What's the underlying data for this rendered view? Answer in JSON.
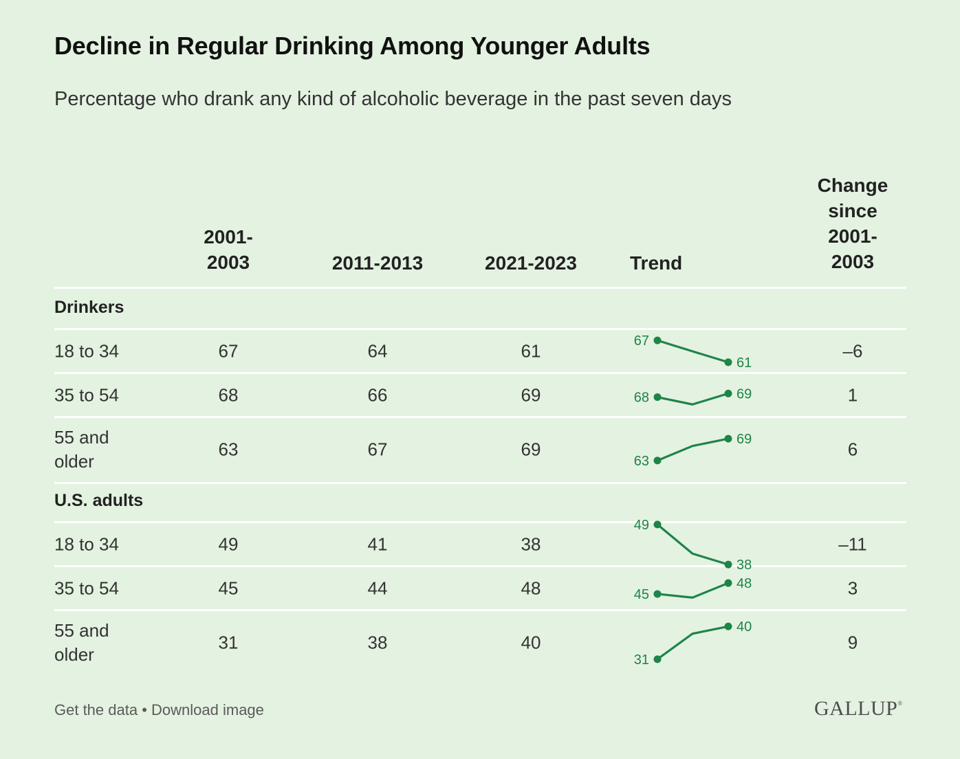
{
  "title": "Decline in Regular Drinking Among Younger Adults",
  "subtitle": "Percentage who drank any kind of alcoholic beverage in the past seven days",
  "headers": {
    "col1_line1": "2001-",
    "col1_line2": "2003",
    "col2": "2011-2013",
    "col3": "2021-2023",
    "trend": "Trend",
    "change_line1": "Change",
    "change_line2": "since",
    "change_line3": "2001-",
    "change_line4": "2003"
  },
  "colors": {
    "background": "#e4f2e1",
    "trend_line": "#1e8449",
    "rule": "#ffffff"
  },
  "chart_data": {
    "type": "table",
    "title": "Decline in Regular Drinking Among Younger Adults",
    "subtitle": "Percentage who drank any kind of alcoholic beverage in the past seven days",
    "columns": [
      "2001-2003",
      "2011-2013",
      "2021-2023"
    ],
    "groups": [
      {
        "name": "Drinkers",
        "rows": [
          {
            "label_line1": "18 to 34",
            "label_line2": "",
            "values": [
              67,
              64,
              61
            ],
            "change": "–6"
          },
          {
            "label_line1": "35 to 54",
            "label_line2": "",
            "values": [
              68,
              66,
              69
            ],
            "change": "1"
          },
          {
            "label_line1": "55 and",
            "label_line2": "older",
            "values": [
              63,
              67,
              69
            ],
            "change": "6"
          }
        ]
      },
      {
        "name": "U.S. adults",
        "rows": [
          {
            "label_line1": "18 to 34",
            "label_line2": "",
            "values": [
              49,
              41,
              38
            ],
            "change": "–11"
          },
          {
            "label_line1": "35 to 54",
            "label_line2": "",
            "values": [
              45,
              44,
              48
            ],
            "change": "3"
          },
          {
            "label_line1": "55 and",
            "label_line2": "older",
            "values": [
              31,
              38,
              40
            ],
            "change": "9"
          }
        ]
      }
    ]
  },
  "footer": {
    "get_data": "Get the data",
    "separator": " • ",
    "download": "Download image"
  },
  "logo": {
    "text": "GALLUP",
    "mark": "®"
  }
}
